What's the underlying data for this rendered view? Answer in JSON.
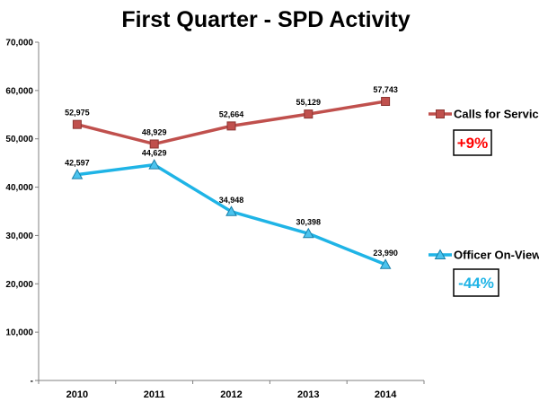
{
  "chart_data": {
    "type": "line",
    "title": "First Quarter - SPD Activity",
    "categories": [
      "2010",
      "2011",
      "2012",
      "2013",
      "2014"
    ],
    "ylim": [
      0,
      70000
    ],
    "yticks": [
      0,
      10000,
      20000,
      30000,
      40000,
      50000,
      60000,
      70000
    ],
    "ytick_labels": [
      "-",
      "10,000",
      "20,000",
      "30,000",
      "40,000",
      "50,000",
      "60,000",
      "70,000"
    ],
    "grid": false,
    "series": [
      {
        "name": "Calls for Service",
        "marker": "square",
        "color": "#c0504d",
        "marker_fill": "#c0504d",
        "values": [
          52975,
          48929,
          52664,
          55129,
          57743
        ],
        "labels": [
          "52,975",
          "48,929",
          "52,664",
          "55,129",
          "57,743"
        ],
        "change": "+9%",
        "change_color": "#ff0000"
      },
      {
        "name": "Officer On-View",
        "marker": "triangle",
        "color": "#1fb4e6",
        "marker_fill": "#4bc3ee",
        "values": [
          42597,
          44629,
          34948,
          30398,
          23990
        ],
        "labels": [
          "42,597",
          "44,629",
          "34,948",
          "30,398",
          "23,990"
        ],
        "change": "-44%",
        "change_color": "#1fb4e6"
      }
    ]
  }
}
